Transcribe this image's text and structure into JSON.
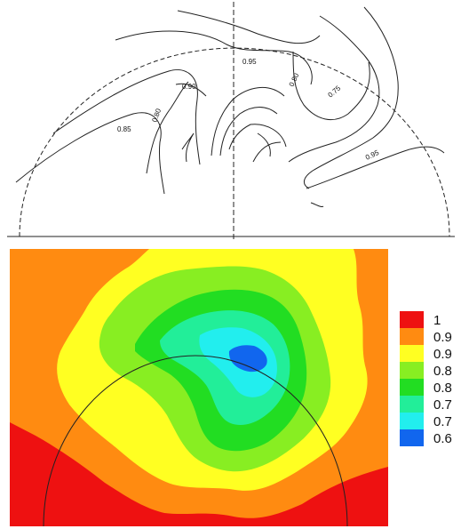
{
  "top_panel": {
    "contour_labels": [
      "0.85",
      "0.90",
      "0.80",
      "0.95",
      "0.80",
      "0.75",
      "0.95"
    ]
  },
  "bottom_panel": {
    "legend": {
      "levels": [
        {
          "label": "1",
          "color": "#ee1111"
        },
        {
          "label": "0.9",
          "color": "#ff8b11"
        },
        {
          "label": "0.9",
          "color": "#ffff22"
        },
        {
          "label": "0.8",
          "color": "#88ee22"
        },
        {
          "label": "0.8",
          "color": "#22dd22"
        },
        {
          "label": "0.7",
          "color": "#22ee99"
        },
        {
          "label": "0.7",
          "color": "#22eeee"
        },
        {
          "label": "0.6",
          "color": "#1166ee"
        }
      ]
    }
  }
}
